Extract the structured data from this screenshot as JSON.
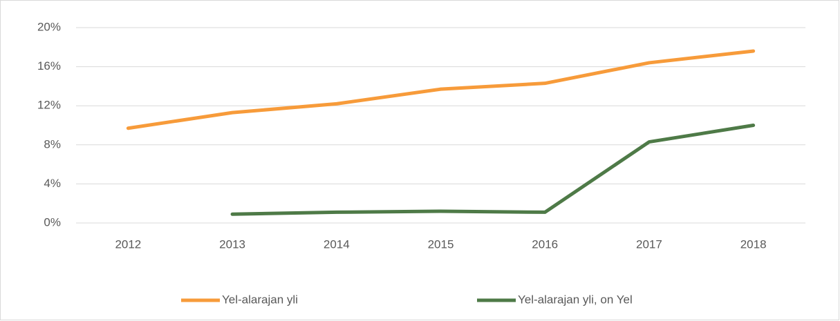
{
  "chart_data": {
    "type": "line",
    "categories": [
      "2012",
      "2013",
      "2014",
      "2015",
      "2016",
      "2017",
      "2018"
    ],
    "series": [
      {
        "name": "Yel-alarajan yli",
        "color": "#f79b3a",
        "values": [
          9.7,
          11.3,
          12.2,
          13.7,
          14.3,
          16.4,
          17.6
        ]
      },
      {
        "name": "Yel-alarajan yli, on Yel",
        "color": "#4e7a47",
        "values": [
          null,
          0.9,
          1.1,
          1.2,
          1.1,
          8.3,
          10.0
        ]
      }
    ],
    "ylim": [
      0,
      20
    ],
    "yticks": [
      {
        "value": 0,
        "label": "0%"
      },
      {
        "value": 4,
        "label": "4%"
      },
      {
        "value": 8,
        "label": "8%"
      },
      {
        "value": 12,
        "label": "12%"
      },
      {
        "value": 16,
        "label": "16%"
      },
      {
        "value": 20,
        "label": "20%"
      }
    ],
    "grid": true,
    "legend": "bottom"
  }
}
